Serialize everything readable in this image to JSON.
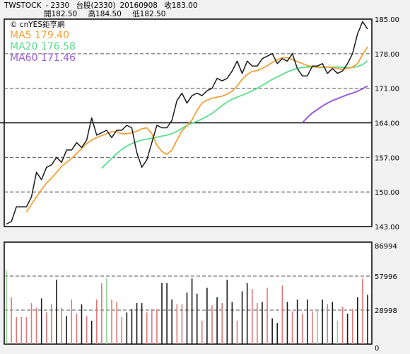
{
  "header": {
    "symbol": "TWSTOCK",
    "code": "- 2330",
    "name": "台股(2330)",
    "date": "20160908",
    "close_label": "收183.00",
    "open_label": "開182.50",
    "high_label": "高184.50",
    "low_label": "低182.50"
  },
  "source_label": "© cnYES鉅亨網",
  "colors": {
    "price": "#1a1a1a",
    "ma5": "#f5a036",
    "ma20": "#58e08c",
    "ma60": "#9a5ad6",
    "vol_up": "#e07878",
    "vol_down": "#1a1a1a",
    "vol_flat": "#8fd08f"
  },
  "chart_data": [
    {
      "type": "line",
      "title": "",
      "ylim": [
        143,
        185
      ],
      "y_ticks": [
        "185.00",
        "178.00",
        "171.00",
        "164.00",
        "157.00",
        "150.00",
        "143.00"
      ],
      "grid": "dashed horizontal",
      "series": [
        {
          "name": "MA5 179.40",
          "key": "ma5",
          "values": [
            null,
            null,
            null,
            null,
            146.0,
            147.5,
            149.0,
            150.5,
            151.8,
            152.8,
            154.0,
            155.2,
            156.0,
            156.8,
            157.8,
            158.8,
            159.8,
            160.5,
            161.0,
            161.4,
            161.8,
            162.2,
            162.2,
            161.8,
            161.8,
            162.0,
            162.3,
            162.8,
            163.0,
            161.8,
            159.5,
            158.2,
            157.6,
            158.5,
            160.5,
            162.4,
            163.4,
            164.6,
            166.5,
            168.0,
            168.6,
            169.0,
            169.2,
            169.4,
            169.8,
            170.4,
            171.5,
            172.8,
            173.8,
            174.4,
            174.6,
            175.0,
            175.6,
            176.2,
            176.8,
            177.2,
            177.2,
            176.8,
            176.4,
            176.0,
            175.6,
            175.4,
            175.2,
            175.2,
            175.3,
            175.2,
            175.0,
            174.8,
            175.0,
            175.3,
            176.0,
            177.8,
            179.4
          ]
        },
        {
          "name": "MA20 176.58",
          "key": "ma20",
          "values": [
            null,
            null,
            null,
            null,
            null,
            null,
            null,
            null,
            null,
            null,
            null,
            null,
            null,
            null,
            null,
            null,
            null,
            null,
            null,
            154.8,
            155.8,
            156.8,
            157.8,
            158.6,
            159.3,
            159.8,
            160.2,
            160.5,
            160.7,
            160.9,
            161.1,
            161.3,
            161.5,
            161.8,
            162.3,
            162.9,
            163.5,
            163.9,
            164.3,
            164.8,
            165.3,
            165.9,
            166.7,
            167.5,
            168.2,
            168.8,
            169.2,
            169.6,
            170.0,
            170.5,
            171.0,
            171.6,
            172.2,
            172.8,
            173.3,
            173.8,
            174.3,
            174.7,
            175.0,
            175.2,
            175.3,
            175.3,
            175.3,
            175.3,
            175.3,
            175.3,
            175.3,
            175.2,
            175.2,
            175.2,
            175.4,
            175.8,
            176.58
          ]
        },
        {
          "name": "MA60 171.46",
          "key": "ma60",
          "values": [
            null,
            null,
            null,
            null,
            null,
            null,
            null,
            null,
            null,
            null,
            null,
            null,
            null,
            null,
            null,
            null,
            null,
            null,
            null,
            null,
            null,
            null,
            null,
            null,
            null,
            null,
            null,
            null,
            null,
            null,
            null,
            null,
            null,
            null,
            null,
            null,
            null,
            null,
            null,
            null,
            null,
            null,
            null,
            null,
            null,
            null,
            null,
            null,
            null,
            null,
            null,
            null,
            null,
            null,
            null,
            null,
            null,
            null,
            null,
            164.0,
            165.1,
            166.0,
            166.7,
            167.4,
            168.0,
            168.5,
            168.9,
            169.3,
            169.7,
            170.0,
            170.4,
            170.9,
            171.46
          ]
        },
        {
          "name": "",
          "key": "price",
          "values": [
            143.5,
            144.0,
            147.0,
            147.0,
            147.0,
            149.0,
            154.0,
            152.5,
            155.0,
            155.5,
            157.0,
            156.0,
            158.5,
            158.5,
            160.0,
            159.0,
            160.5,
            165.0,
            161.5,
            162.0,
            162.5,
            161.0,
            162.5,
            162.5,
            163.5,
            163.0,
            158.0,
            155.0,
            156.5,
            160.0,
            163.5,
            163.0,
            163.0,
            164.5,
            168.5,
            170.0,
            168.0,
            169.5,
            170.0,
            169.5,
            170.5,
            171.0,
            173.0,
            172.5,
            173.0,
            174.5,
            176.5,
            174.0,
            176.5,
            175.5,
            175.5,
            177.0,
            177.5,
            178.0,
            176.0,
            177.0,
            176.5,
            178.0,
            175.0,
            173.5,
            173.5,
            175.5,
            175.5,
            176.0,
            174.0,
            175.0,
            174.0,
            174.5,
            176.0,
            178.0,
            182.0,
            184.5,
            183.0
          ]
        }
      ]
    },
    {
      "type": "bar",
      "title": "",
      "ylim": [
        0,
        86994
      ],
      "y_ticks": [
        "86994",
        "57996",
        "28998",
        "0"
      ],
      "values": [
        63000,
        40000,
        23000,
        23000,
        23000,
        35000,
        31000,
        39000,
        27000,
        34000,
        55000,
        31000,
        24000,
        38000,
        26000,
        34000,
        24000,
        20000,
        38000,
        52000,
        56000,
        38000,
        36000,
        23000,
        27000,
        30000,
        35000,
        35000,
        27000,
        30000,
        30000,
        52000,
        52000,
        38000,
        34000,
        34000,
        44000,
        56000,
        43000,
        20000,
        48000,
        33000,
        40000,
        35000,
        55000,
        36000,
        20000,
        45000,
        52000,
        47000,
        35000,
        36000,
        48000,
        22000,
        18000,
        50000,
        36000,
        28000,
        38000,
        26000,
        38000,
        28000,
        30000,
        38000,
        34000,
        36000,
        20000,
        32000,
        26000,
        30000,
        40000,
        56000,
        42000
      ],
      "up_down": [
        "f",
        "u",
        "u",
        "u",
        "u",
        "u",
        "u",
        "d",
        "u",
        "u",
        "d",
        "u",
        "d",
        "u",
        "u",
        "d",
        "u",
        "d",
        "u",
        "u",
        "f",
        "u",
        "u",
        "u",
        "d",
        "d",
        "d",
        "d",
        "u",
        "u",
        "u",
        "d",
        "d",
        "d",
        "u",
        "u",
        "d",
        "d",
        "d",
        "u",
        "d",
        "u",
        "d",
        "u",
        "d",
        "d",
        "u",
        "d",
        "d",
        "u",
        "u",
        "d",
        "u",
        "d",
        "d",
        "u",
        "d",
        "u",
        "d",
        "u",
        "d",
        "u",
        "f",
        "d",
        "u",
        "d",
        "f",
        "u",
        "d",
        "u",
        "d",
        "u",
        "d"
      ]
    }
  ]
}
